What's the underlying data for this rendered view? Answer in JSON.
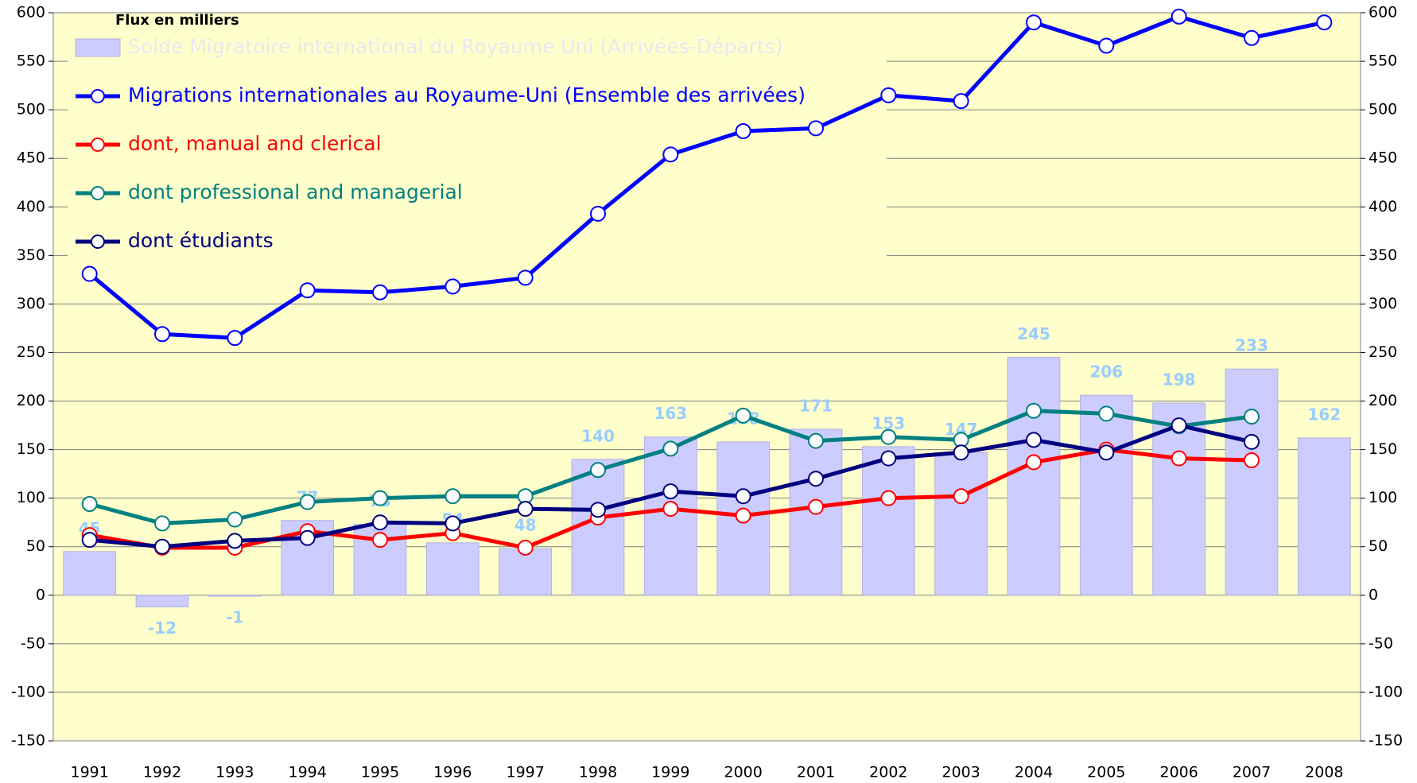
{
  "chart_data": {
    "type": "combo",
    "annotation": "Flux en milliers",
    "categories": [
      "1991",
      "1992",
      "1993",
      "1994",
      "1995",
      "1996",
      "1997",
      "1998",
      "1999",
      "2000",
      "2001",
      "2002",
      "2003",
      "2004",
      "2005",
      "2006",
      "2007",
      "2008"
    ],
    "series": [
      {
        "name": "Solde Migratoire international du Royaume Uni (Arrivées-Départs)",
        "type": "bar",
        "color": "#ccccff",
        "label_color": "#99ccff",
        "values": [
          45,
          -12,
          -1,
          77,
          73,
          54,
          48,
          140,
          163,
          158,
          171,
          153,
          147,
          245,
          206,
          198,
          233,
          162
        ]
      },
      {
        "name": "Migrations internationales au Royaume-Uni (Ensemble des arrivées)",
        "type": "line",
        "color": "#0000ff",
        "values": [
          331,
          269,
          265,
          314,
          312,
          318,
          327,
          393,
          454,
          478,
          481,
          515,
          509,
          590,
          566,
          596,
          574,
          590
        ]
      },
      {
        "name": "dont, manual and clerical",
        "type": "line",
        "color": "#ff0000",
        "values": [
          62,
          49,
          49,
          66,
          57,
          64,
          49,
          80,
          89,
          82,
          91,
          100,
          102,
          137,
          150,
          141,
          139,
          null
        ]
      },
      {
        "name": "dont professional and managerial",
        "type": "line",
        "color": "#008080",
        "values": [
          94,
          74,
          78,
          96,
          100,
          102,
          102,
          129,
          151,
          185,
          159,
          163,
          160,
          190,
          187,
          174,
          184,
          null
        ]
      },
      {
        "name": "dont étudiants",
        "type": "line",
        "color": "#000080",
        "values": [
          57,
          50,
          56,
          59,
          75,
          74,
          89,
          88,
          107,
          102,
          120,
          141,
          147,
          160,
          147,
          175,
          158,
          null
        ]
      }
    ],
    "ylim": [
      -150,
      600
    ],
    "yticks": [
      -150,
      -100,
      -50,
      0,
      50,
      100,
      150,
      200,
      250,
      300,
      350,
      400,
      450,
      500,
      550,
      600
    ],
    "y2lim": [
      -150,
      600
    ],
    "y2ticks": [
      -150,
      -100,
      -50,
      0,
      50,
      100,
      150,
      200,
      250,
      300,
      350,
      400,
      450,
      500,
      550,
      600
    ],
    "grid": true,
    "legend": "upper left",
    "background": "#ffffcc"
  }
}
